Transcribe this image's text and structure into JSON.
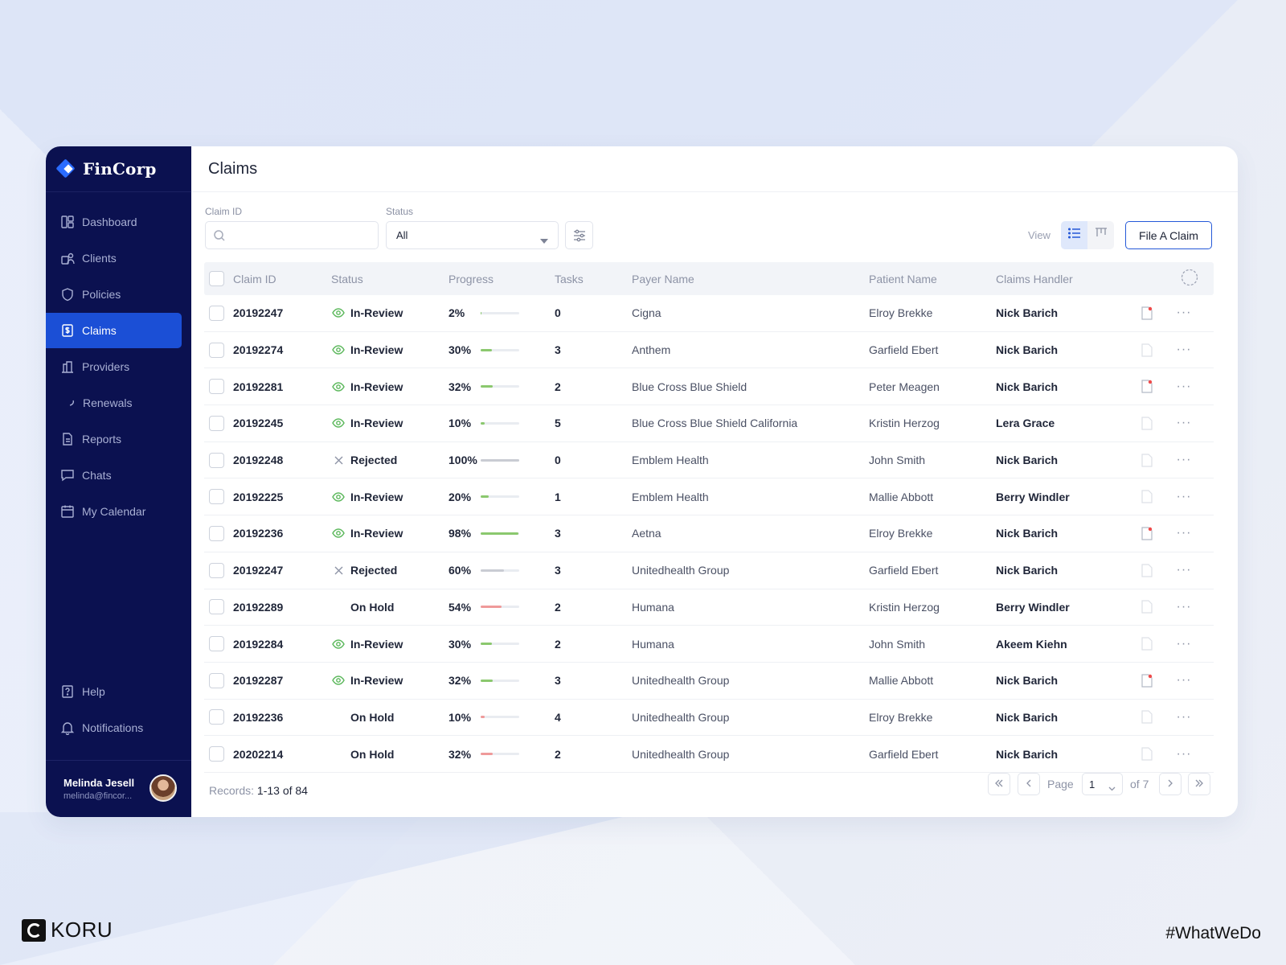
{
  "brand": {
    "name": "FinCorp"
  },
  "sidebar": {
    "items": [
      {
        "label": "Dashboard",
        "icon": "dashboard-icon"
      },
      {
        "label": "Clients",
        "icon": "clients-icon"
      },
      {
        "label": "Policies",
        "icon": "shield-icon"
      },
      {
        "label": "Claims",
        "icon": "claims-doc-icon",
        "active": true
      },
      {
        "label": "Providers",
        "icon": "providers-icon"
      },
      {
        "label": "Renewals",
        "icon": "renewals-icon"
      },
      {
        "label": "Reports",
        "icon": "reports-icon"
      },
      {
        "label": "Chats",
        "icon": "chat-icon"
      },
      {
        "label": "My Calendar",
        "icon": "calendar-icon"
      }
    ],
    "bottom_items": [
      {
        "label": "Help",
        "icon": "help-icon"
      },
      {
        "label": "Notifications",
        "icon": "bell-icon"
      }
    ],
    "user": {
      "name": "Melinda Jesell",
      "email": "melinda@fincor..."
    }
  },
  "header": {
    "title": "Claims"
  },
  "filters": {
    "claim_id_label": "Claim ID",
    "claim_id_value": "",
    "status_label": "Status",
    "status_value": "All",
    "view_label": "View",
    "file_claim_label": "File A Claim"
  },
  "table": {
    "columns": [
      "Claim ID",
      "Status",
      "Progress",
      "Tasks",
      "Payer Name",
      "Patient Name",
      "Claims Handler"
    ],
    "rows": [
      {
        "id": "20192247",
        "status": "In-Review",
        "status_icon": "eye-icon",
        "progress": "2%",
        "pct": 2,
        "bar": "#8bc86e",
        "tasks": "0",
        "payer": "Cigna",
        "patient": "Elroy Brekke",
        "handler": "Nick Barich",
        "doc_alert": true
      },
      {
        "id": "20192274",
        "status": "In-Review",
        "status_icon": "eye-icon",
        "progress": "30%",
        "pct": 30,
        "bar": "#8bc86e",
        "tasks": "3",
        "payer": "Anthem",
        "patient": "Garfield Ebert",
        "handler": "Nick Barich",
        "doc_alert": false
      },
      {
        "id": "20192281",
        "status": "In-Review",
        "status_icon": "eye-icon",
        "progress": "32%",
        "pct": 32,
        "bar": "#8bc86e",
        "tasks": "2",
        "payer": "Blue Cross Blue Shield",
        "patient": "Peter Meagen",
        "handler": "Nick Barich",
        "doc_alert": true
      },
      {
        "id": "20192245",
        "status": "In-Review",
        "status_icon": "eye-icon",
        "progress": "10%",
        "pct": 10,
        "bar": "#8bc86e",
        "tasks": "5",
        "payer": "Blue Cross Blue Shield California",
        "patient": "Kristin Herzog",
        "handler": "Lera Grace",
        "doc_alert": false
      },
      {
        "id": "20192248",
        "status": "Rejected",
        "status_icon": "x-icon",
        "progress": "100%",
        "pct": 100,
        "bar": "#c9ccd3",
        "tasks": "0",
        "payer": "Emblem Health",
        "patient": "John Smith",
        "handler": "Nick Barich",
        "doc_alert": false
      },
      {
        "id": "20192225",
        "status": "In-Review",
        "status_icon": "eye-icon",
        "progress": "20%",
        "pct": 20,
        "bar": "#8bc86e",
        "tasks": "1",
        "payer": "Emblem Health",
        "patient": "Mallie Abbott",
        "handler": "Berry Windler",
        "doc_alert": false
      },
      {
        "id": "20192236",
        "status": "In-Review",
        "status_icon": "eye-icon",
        "progress": "98%",
        "pct": 98,
        "bar": "#8bc86e",
        "tasks": "3",
        "payer": "Aetna",
        "patient": "Elroy Brekke",
        "handler": "Nick Barich",
        "doc_alert": true
      },
      {
        "id": "20192247",
        "status": "Rejected",
        "status_icon": "x-icon",
        "progress": "60%",
        "pct": 60,
        "bar": "#c9ccd3",
        "tasks": "3",
        "payer": "Unitedhealth Group",
        "patient": "Garfield Ebert",
        "handler": "Nick Barich",
        "doc_alert": false
      },
      {
        "id": "20192289",
        "status": "On Hold",
        "status_icon": "none",
        "progress": "54%",
        "pct": 54,
        "bar": "#ef9a9a",
        "tasks": "2",
        "payer": "Humana",
        "patient": "Kristin Herzog",
        "handler": "Berry Windler",
        "doc_alert": false
      },
      {
        "id": "20192284",
        "status": "In-Review",
        "status_icon": "eye-icon",
        "progress": "30%",
        "pct": 30,
        "bar": "#8bc86e",
        "tasks": "2",
        "payer": "Humana",
        "patient": "John Smith",
        "handler": "Akeem Kiehn",
        "doc_alert": false
      },
      {
        "id": "20192287",
        "status": "In-Review",
        "status_icon": "eye-icon",
        "progress": "32%",
        "pct": 32,
        "bar": "#8bc86e",
        "tasks": "3",
        "payer": "Unitedhealth Group",
        "patient": "Mallie Abbott",
        "handler": "Nick Barich",
        "doc_alert": true
      },
      {
        "id": "20192236",
        "status": "On Hold",
        "status_icon": "none",
        "progress": "10%",
        "pct": 10,
        "bar": "#ef9a9a",
        "tasks": "4",
        "payer": "Unitedhealth Group",
        "patient": "Elroy Brekke",
        "handler": "Nick Barich",
        "doc_alert": false
      },
      {
        "id": "20202214",
        "status": "On Hold",
        "status_icon": "none",
        "progress": "32%",
        "pct": 32,
        "bar": "#ef9a9a",
        "tasks": "2",
        "payer": "Unitedhealth Group",
        "patient": "Garfield Ebert",
        "handler": "Nick Barich",
        "doc_alert": false
      }
    ]
  },
  "footer": {
    "records_label": "Records:",
    "records_value": "1-13 of 84",
    "page_label": "Page",
    "page_value": "1",
    "page_total": "of 7"
  },
  "branding": {
    "agency": "KORU",
    "hashtag": "#WhatWeDo"
  },
  "colors": {
    "sidebar_bg": "#0b1150",
    "active": "#1b4fd6",
    "accent": "#2559d8"
  }
}
